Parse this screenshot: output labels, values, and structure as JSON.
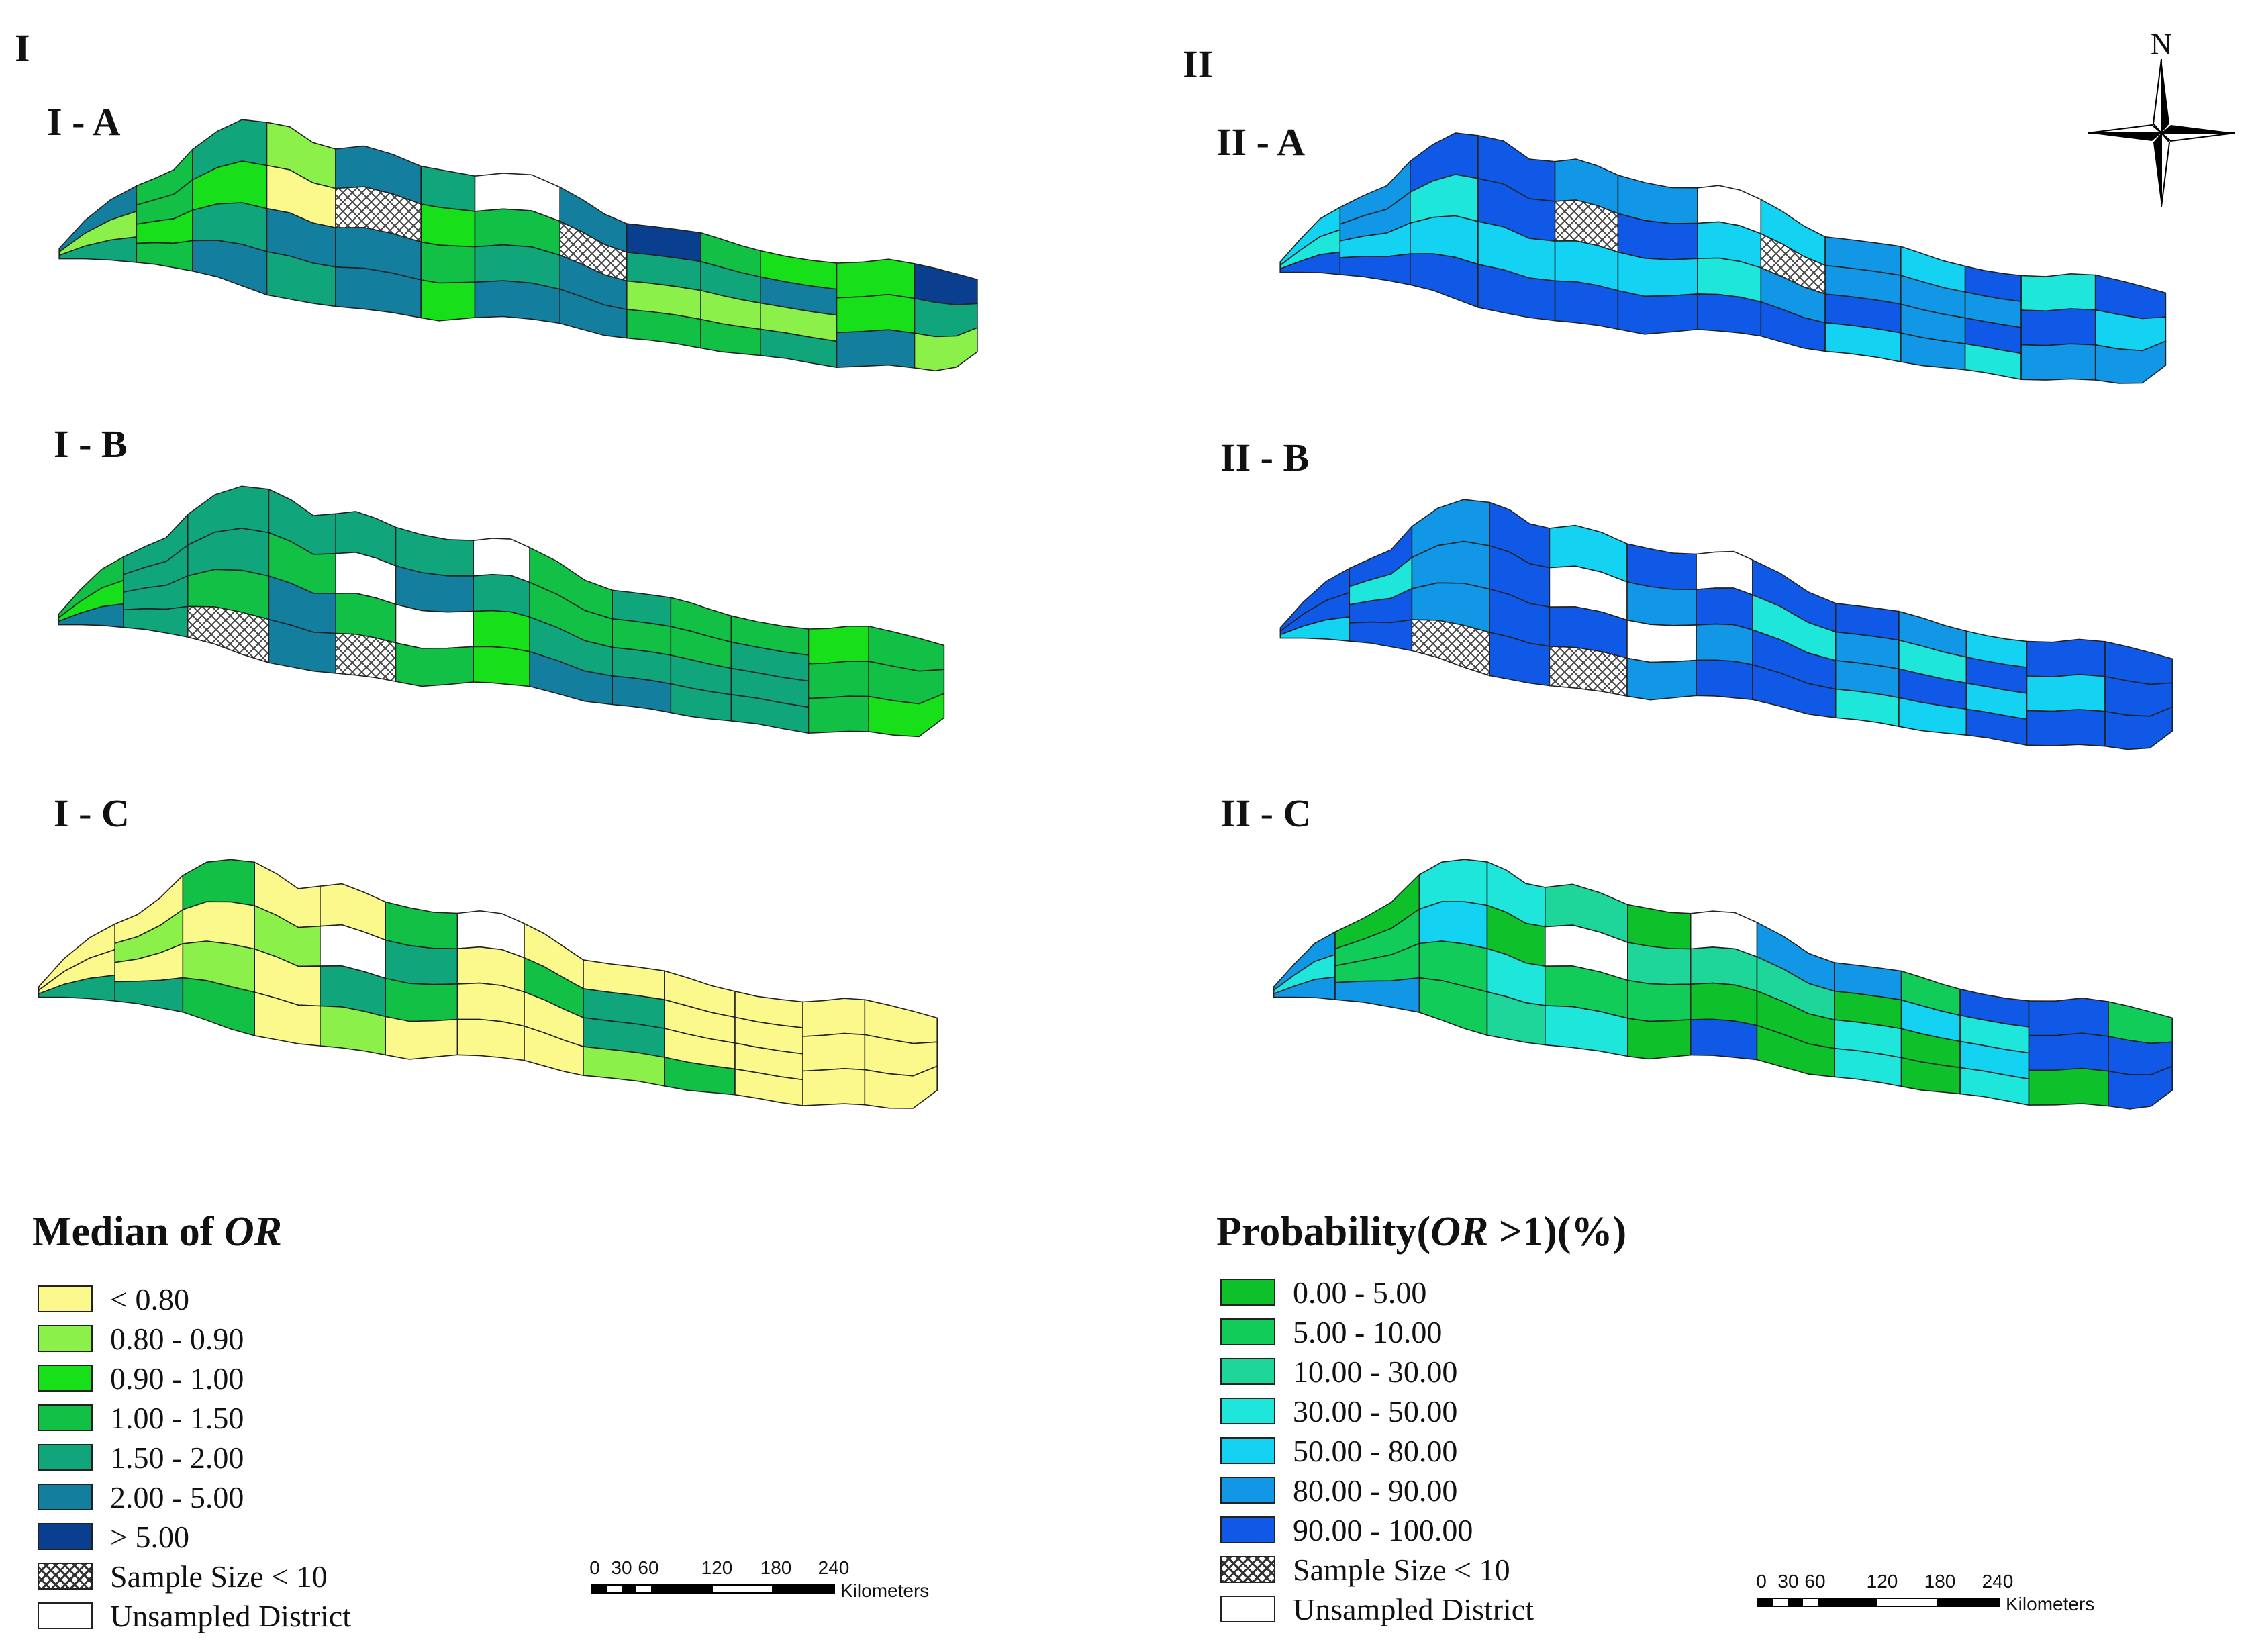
{
  "panels": {
    "left": {
      "label": "I",
      "maps": [
        {
          "label": "I - A",
          "theme": "or",
          "scheme": "A"
        },
        {
          "label": "I - B",
          "theme": "or",
          "scheme": "B"
        },
        {
          "label": "I - C",
          "theme": "or",
          "scheme": "C"
        }
      ]
    },
    "right": {
      "label": "II",
      "maps": [
        {
          "label": "II - A",
          "theme": "prob",
          "scheme": "A"
        },
        {
          "label": "II - B",
          "theme": "prob",
          "scheme": "B"
        },
        {
          "label": "II - C",
          "theme": "prob",
          "scheme": "C"
        }
      ]
    }
  },
  "legend_or": {
    "title_prefix": "Median of ",
    "title_italic": "OR",
    "items": [
      {
        "label": "< 0.80",
        "color": "#fbf98c"
      },
      {
        "label": "0.80 - 0.90",
        "color": "#8cf04a"
      },
      {
        "label": "0.90 - 1.00",
        "color": "#17e01a"
      },
      {
        "label": "1.00 - 1.50",
        "color": "#12c046"
      },
      {
        "label": "1.50 - 2.00",
        "color": "#11a57c"
      },
      {
        "label": "2.00 - 5.00",
        "color": "#137e9e"
      },
      {
        "label": "> 5.00",
        "color": "#0a3e8e"
      }
    ],
    "sample_size_label": "Sample Size < 10",
    "unsampled_label": "Unsampled District"
  },
  "legend_prob": {
    "title_prefix": "Probability(",
    "title_italic": "OR",
    "title_suffix": " >1)(%)",
    "items": [
      {
        "label": "0.00 - 5.00",
        "color": "#0ec02a"
      },
      {
        "label": "5.00 - 10.00",
        "color": "#12cc5a"
      },
      {
        "label": "10.00 - 30.00",
        "color": "#1ed69a"
      },
      {
        "label": "30.00 - 50.00",
        "color": "#1fe6da"
      },
      {
        "label": "50.00 - 80.00",
        "color": "#14d2f2"
      },
      {
        "label": "80.00 - 90.00",
        "color": "#1296e6"
      },
      {
        "label": "90.00 - 100.00",
        "color": "#1059e6"
      }
    ],
    "sample_size_label": "Sample Size < 10",
    "unsampled_label": "Unsampled District"
  },
  "scale_bar": {
    "ticks": [
      "0",
      "30",
      "60",
      "120",
      "180",
      "240"
    ],
    "unit": "Kilometers"
  },
  "north_arrow": {
    "label": "N",
    "icon": "compass-rose-icon"
  }
}
